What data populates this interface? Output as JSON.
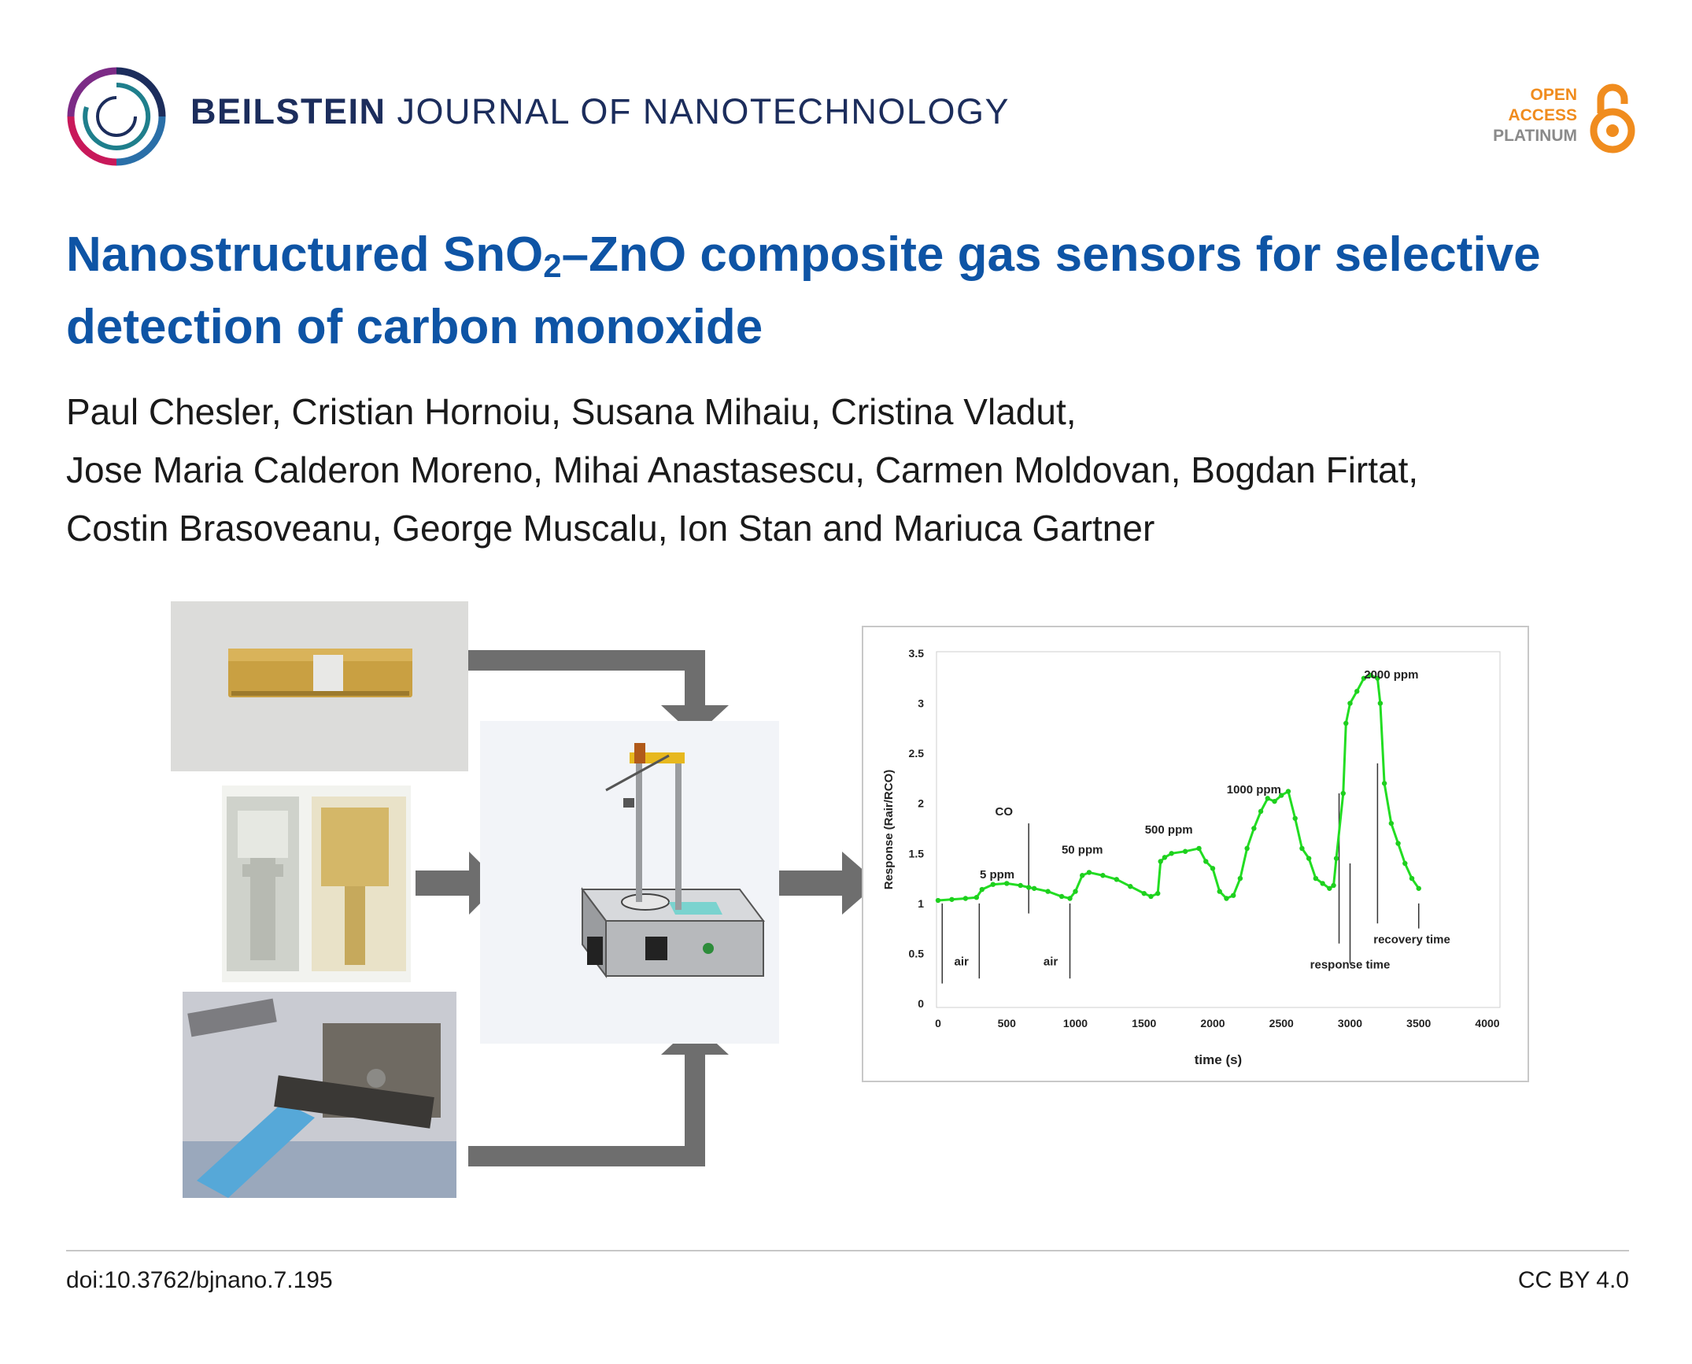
{
  "header": {
    "journal_strong": "BEILSTEIN",
    "journal_rest": "JOURNAL OF NANOTECHNOLOGY",
    "badge": {
      "open": "OPEN",
      "access": "ACCESS",
      "platinum": "PLATINUM"
    }
  },
  "article": {
    "title_part1": "Nanostructured SnO",
    "title_sub": "2",
    "title_part2": "–ZnO composite gas sensors for selective detection of carbon monoxide",
    "authors_lines": [
      "Paul Chesler, Cristian Hornoiu, Susana Mihaiu, Cristina Vladut,",
      "Jose Maria Calderon Moreno, Mihai Anastasescu, Carmen Moldovan, Bogdan Firtat,",
      "Costin Brasoveanu, George Muscalu, Ion Stan and Mariuca Gartner"
    ]
  },
  "footer": {
    "doi": "doi:10.3762/bjnano.7.195",
    "license": "CC BY 4.0"
  },
  "colors": {
    "title": "#0e54a5",
    "journal": "#1c2d5c",
    "oa_orange": "#f08c1e",
    "series": "#22dd22",
    "arrow": "#6e6e6e"
  },
  "chart_data": {
    "type": "line",
    "xlabel": "time (s)",
    "ylabel": "Response (Rair/RCO)",
    "xlim": [
      0,
      4000
    ],
    "ylim": [
      0,
      3.5
    ],
    "xticks": [
      0,
      500,
      1000,
      1500,
      2000,
      2500,
      3000,
      3500,
      4000
    ],
    "yticks": [
      0,
      0.5,
      1,
      1.5,
      2,
      2.5,
      3,
      3.5
    ],
    "ytick_labels": [
      "0",
      "0.5",
      "1",
      "1.5",
      "2",
      "2.5",
      "3",
      "3.5"
    ],
    "grid": false,
    "series": [
      {
        "x": [
          0,
          100,
          200,
          280,
          320,
          400,
          500,
          600,
          660,
          700,
          800,
          900,
          960,
          1000,
          1050,
          1100,
          1200,
          1300,
          1400,
          1500,
          1550,
          1600,
          1620,
          1650,
          1700,
          1800,
          1900,
          1950,
          2000,
          2050,
          2100,
          2150,
          2200,
          2250,
          2300,
          2350,
          2400,
          2450,
          2500,
          2550,
          2600,
          2650,
          2700,
          2750,
          2800,
          2850,
          2880,
          2900,
          2950,
          2970,
          3000,
          3050,
          3100,
          3150,
          3200,
          3220,
          3250,
          3300,
          3350,
          3400,
          3450,
          3500
        ],
        "y": [
          1.03,
          1.04,
          1.05,
          1.06,
          1.14,
          1.19,
          1.2,
          1.18,
          1.16,
          1.15,
          1.12,
          1.07,
          1.05,
          1.12,
          1.28,
          1.31,
          1.28,
          1.24,
          1.17,
          1.1,
          1.07,
          1.1,
          1.42,
          1.46,
          1.5,
          1.52,
          1.55,
          1.42,
          1.35,
          1.12,
          1.05,
          1.08,
          1.25,
          1.55,
          1.75,
          1.92,
          2.05,
          2.02,
          2.08,
          2.12,
          1.85,
          1.55,
          1.45,
          1.25,
          1.2,
          1.15,
          1.18,
          1.45,
          2.1,
          2.8,
          3.0,
          3.12,
          3.25,
          3.28,
          3.25,
          3.0,
          2.2,
          1.8,
          1.6,
          1.4,
          1.25,
          1.15
        ]
      }
    ],
    "annotations": [
      {
        "text": "CO",
        "x": 480,
        "y": 1.88
      },
      {
        "text": "5 ppm",
        "x": 430,
        "y": 1.25
      },
      {
        "text": "air",
        "x": 170,
        "y": 0.38
      },
      {
        "text": "air",
        "x": 820,
        "y": 0.38
      },
      {
        "text": "50 ppm",
        "x": 1050,
        "y": 1.5
      },
      {
        "text": "500 ppm",
        "x": 1680,
        "y": 1.7
      },
      {
        "text": "1000 ppm",
        "x": 2300,
        "y": 2.1
      },
      {
        "text": "2000 ppm",
        "x": 3300,
        "y": 3.25
      },
      {
        "text": "recovery time",
        "x": 3450,
        "y": 0.6
      },
      {
        "text": "response time",
        "x": 3000,
        "y": 0.35
      }
    ]
  }
}
